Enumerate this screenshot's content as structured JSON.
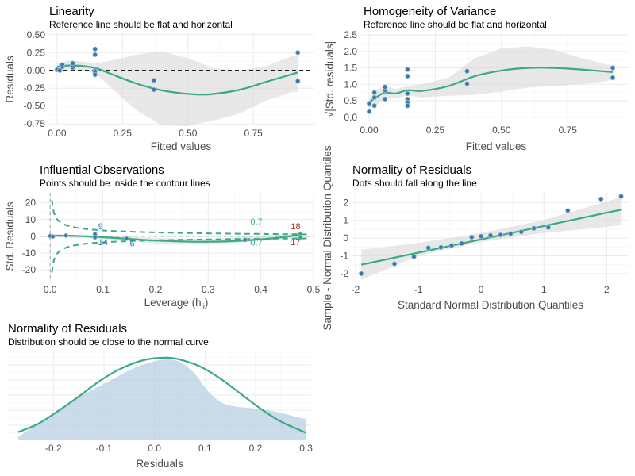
{
  "colors": {
    "smooth": "#3aaa85",
    "points": "#3a78a6",
    "band": "#d9d9d9",
    "outlier": "#b02a2a",
    "density": "#b8cfe3"
  },
  "chart_data": [
    {
      "id": "linearity",
      "type": "scatter",
      "title": "Linearity",
      "subtitle": "Reference line should be flat and horizontal",
      "xlabel": "Fitted values",
      "ylabel": "Residuals",
      "xlim": [
        -0.03,
        0.98
      ],
      "ylim": [
        -0.77,
        0.52
      ],
      "xticks": [
        0,
        0.25,
        0.5,
        0.75
      ],
      "xtick_labels": [
        "0.00",
        "0.25",
        "0.50",
        "0.75"
      ],
      "yticks": [
        0.5,
        0.25,
        0,
        -0.25,
        -0.5,
        -0.75
      ],
      "ytick_labels": [
        "0.50",
        "0.25",
        "0.00",
        "-0.25",
        "-0.50",
        "-0.75"
      ],
      "reference_y": 0,
      "points": [
        [
          0.0,
          0.01
        ],
        [
          0.01,
          0.0
        ],
        [
          0.02,
          0.05
        ],
        [
          0.02,
          0.08
        ],
        [
          0.06,
          0.04
        ],
        [
          0.06,
          0.07
        ],
        [
          0.06,
          0.1
        ],
        [
          0.145,
          0.3
        ],
        [
          0.145,
          0.22
        ],
        [
          0.145,
          0.0
        ],
        [
          0.145,
          -0.02
        ],
        [
          0.145,
          -0.06
        ],
        [
          0.37,
          -0.14
        ],
        [
          0.37,
          -0.27
        ],
        [
          0.92,
          0.25
        ],
        [
          0.92,
          -0.15
        ]
      ],
      "smooth": [
        [
          0.0,
          0.05
        ],
        [
          0.05,
          0.07
        ],
        [
          0.1,
          0.06
        ],
        [
          0.15,
          0.03
        ],
        [
          0.2,
          -0.04
        ],
        [
          0.3,
          -0.18
        ],
        [
          0.4,
          -0.28
        ],
        [
          0.5,
          -0.33
        ],
        [
          0.55,
          -0.34
        ],
        [
          0.6,
          -0.33
        ],
        [
          0.7,
          -0.27
        ],
        [
          0.8,
          -0.16
        ],
        [
          0.9,
          -0.05
        ],
        [
          0.92,
          -0.03
        ]
      ],
      "band_upper": [
        [
          0.0,
          0.1
        ],
        [
          0.05,
          0.14
        ],
        [
          0.1,
          0.12
        ],
        [
          0.15,
          0.1
        ],
        [
          0.2,
          0.13
        ],
        [
          0.3,
          0.22
        ],
        [
          0.4,
          0.27
        ],
        [
          0.5,
          0.17
        ],
        [
          0.6,
          0.03
        ],
        [
          0.7,
          0.0
        ],
        [
          0.8,
          0.06
        ],
        [
          0.9,
          0.2
        ],
        [
          0.92,
          0.22
        ]
      ],
      "band_lower": [
        [
          0.92,
          -0.3
        ],
        [
          0.9,
          -0.3
        ],
        [
          0.8,
          -0.42
        ],
        [
          0.7,
          -0.6
        ],
        [
          0.6,
          -0.7
        ],
        [
          0.5,
          -0.78
        ],
        [
          0.4,
          -0.77
        ],
        [
          0.3,
          -0.55
        ],
        [
          0.2,
          -0.22
        ],
        [
          0.15,
          -0.05
        ],
        [
          0.1,
          0.0
        ],
        [
          0.05,
          0.01
        ],
        [
          0.0,
          0.0
        ]
      ]
    },
    {
      "id": "homogeneity",
      "type": "scatter",
      "title": "Homogeneity of Variance",
      "subtitle": "Reference line should be flat and horizontal",
      "xlabel": "Fitted values",
      "ylabel": "√|Std. residuals|",
      "xlim": [
        -0.03,
        0.98
      ],
      "ylim": [
        -0.15,
        2.55
      ],
      "xticks": [
        0,
        0.25,
        0.5,
        0.75
      ],
      "xtick_labels": [
        "0.00",
        "0.25",
        "0.50",
        "0.75"
      ],
      "yticks": [
        2.5,
        2.0,
        1.5,
        1.0,
        0.5,
        0.0
      ],
      "ytick_labels": [
        "2.5",
        "2.0",
        "1.5",
        "1.0",
        "0.5",
        "0.0"
      ],
      "points": [
        [
          0.0,
          0.17
        ],
        [
          0.0,
          0.42
        ],
        [
          0.02,
          0.35
        ],
        [
          0.02,
          0.6
        ],
        [
          0.02,
          0.75
        ],
        [
          0.06,
          0.55
        ],
        [
          0.06,
          0.82
        ],
        [
          0.06,
          0.92
        ],
        [
          0.145,
          1.45
        ],
        [
          0.145,
          1.25
        ],
        [
          0.145,
          0.72
        ],
        [
          0.145,
          0.55
        ],
        [
          0.145,
          0.45
        ],
        [
          0.145,
          0.35
        ],
        [
          0.37,
          1.4
        ],
        [
          0.37,
          1.02
        ],
        [
          0.92,
          1.5
        ],
        [
          0.92,
          1.2
        ]
      ],
      "smooth": [
        [
          0.0,
          0.45
        ],
        [
          0.03,
          0.62
        ],
        [
          0.06,
          0.75
        ],
        [
          0.1,
          0.72
        ],
        [
          0.145,
          0.82
        ],
        [
          0.2,
          0.8
        ],
        [
          0.3,
          0.95
        ],
        [
          0.4,
          1.25
        ],
        [
          0.5,
          1.42
        ],
        [
          0.6,
          1.5
        ],
        [
          0.7,
          1.5
        ],
        [
          0.8,
          1.45
        ],
        [
          0.92,
          1.37
        ]
      ],
      "band_upper": [
        [
          0.0,
          0.6
        ],
        [
          0.03,
          0.85
        ],
        [
          0.06,
          0.95
        ],
        [
          0.1,
          0.85
        ],
        [
          0.145,
          0.95
        ],
        [
          0.2,
          1.0
        ],
        [
          0.3,
          1.2
        ],
        [
          0.4,
          1.8
        ],
        [
          0.5,
          2.1
        ],
        [
          0.6,
          2.15
        ],
        [
          0.7,
          2.05
        ],
        [
          0.8,
          1.8
        ],
        [
          0.9,
          1.6
        ],
        [
          0.92,
          1.58
        ]
      ],
      "band_lower": [
        [
          0.92,
          1.15
        ],
        [
          0.9,
          1.1
        ],
        [
          0.8,
          1.0
        ],
        [
          0.7,
          0.95
        ],
        [
          0.6,
          0.9
        ],
        [
          0.5,
          0.78
        ],
        [
          0.4,
          0.68
        ],
        [
          0.3,
          0.65
        ],
        [
          0.2,
          0.6
        ],
        [
          0.145,
          0.66
        ],
        [
          0.1,
          0.58
        ],
        [
          0.06,
          0.55
        ],
        [
          0.03,
          0.38
        ],
        [
          0.0,
          0.3
        ]
      ]
    },
    {
      "id": "influential",
      "type": "scatter",
      "title": "Influential Observations",
      "subtitle": "Points should be inside the contour lines",
      "xlabel": "Leverage (h",
      "xlabel_sub": "ii",
      "xlabel_end": ")",
      "ylabel": "Std. Residuals",
      "xlim": [
        -0.02,
        0.5
      ],
      "ylim": [
        -27,
        26
      ],
      "xticks": [
        0,
        0.1,
        0.2,
        0.3,
        0.4,
        0.5
      ],
      "xtick_labels": [
        "0.0",
        "0.1",
        "0.2",
        "0.3",
        "0.4",
        "0.5"
      ],
      "yticks": [
        20,
        10,
        0,
        -10,
        -20
      ],
      "ytick_labels": [
        "20",
        "10",
        "0",
        "-10",
        "-20"
      ],
      "points": [
        [
          0.0,
          0.2
        ],
        [
          0.005,
          -0.1
        ],
        [
          0.03,
          0.5
        ],
        [
          0.085,
          1.3
        ],
        [
          0.085,
          -0.6
        ],
        [
          0.145,
          -1.3
        ],
        [
          0.37,
          -2.1
        ],
        [
          0.475,
          1.3
        ],
        [
          0.475,
          -0.6
        ]
      ],
      "point_labels": [
        {
          "x": 0.085,
          "y": 1.3,
          "text": "9",
          "kind": "in"
        },
        {
          "x": 0.085,
          "y": -0.6,
          "text": "14",
          "kind": "in"
        },
        {
          "x": 0.145,
          "y": -1.3,
          "text": "6",
          "kind": "in"
        },
        {
          "x": 0.475,
          "y": 1.3,
          "text": "18",
          "kind": "out"
        },
        {
          "x": 0.475,
          "y": -0.6,
          "text": "17",
          "kind": "out"
        }
      ],
      "contour_labels": [
        {
          "x": 0.38,
          "y": 7,
          "text": "0.7"
        },
        {
          "x": 0.38,
          "y": -5.5,
          "text": "0.7"
        }
      ],
      "smooth": [
        [
          0.0,
          0.5
        ],
        [
          0.05,
          0.3
        ],
        [
          0.1,
          -0.5
        ],
        [
          0.15,
          -1.5
        ],
        [
          0.2,
          -2.5
        ],
        [
          0.28,
          -3.2
        ],
        [
          0.35,
          -2.8
        ],
        [
          0.42,
          -1.2
        ],
        [
          0.47,
          0.8
        ]
      ],
      "band_upper": [
        [
          0.0,
          1.2
        ],
        [
          0.1,
          0.5
        ],
        [
          0.2,
          -1
        ],
        [
          0.3,
          -1.6
        ],
        [
          0.4,
          0.2
        ],
        [
          0.47,
          2.2
        ]
      ],
      "band_lower": [
        [
          0.47,
          -0.8
        ],
        [
          0.4,
          -2.8
        ],
        [
          0.3,
          -4.8
        ],
        [
          0.2,
          -4.2
        ],
        [
          0.1,
          -1.6
        ],
        [
          0.0,
          -0.3
        ]
      ]
    },
    {
      "id": "qq",
      "type": "scatter",
      "title": "Normality of Residuals",
      "subtitle": "Dots should fall along the line",
      "xlabel": "Standard Normal Distribution Quantiles",
      "ylabel": "Sample - Normal Distribution Quantiles",
      "xlim": [
        -2.05,
        2.35
      ],
      "ylim": [
        -2.45,
        2.55
      ],
      "xticks": [
        -2,
        -1,
        0,
        1,
        2
      ],
      "xtick_labels": [
        "-2",
        "-1",
        "0",
        "1",
        "2"
      ],
      "yticks": [
        2,
        1,
        0,
        -1,
        -2
      ],
      "ytick_labels": [
        "2",
        "1",
        "0",
        "-1",
        "-2"
      ],
      "points": [
        [
          -1.91,
          -2.0
        ],
        [
          -1.38,
          -1.45
        ],
        [
          -1.07,
          -1.05
        ],
        [
          -0.84,
          -0.55
        ],
        [
          -0.64,
          -0.52
        ],
        [
          -0.47,
          -0.42
        ],
        [
          -0.31,
          -0.3
        ],
        [
          -0.15,
          0.05
        ],
        [
          0.0,
          0.1
        ],
        [
          0.15,
          0.15
        ],
        [
          0.31,
          0.18
        ],
        [
          0.47,
          0.25
        ],
        [
          0.64,
          0.35
        ],
        [
          0.84,
          0.55
        ],
        [
          1.07,
          0.6
        ],
        [
          1.38,
          1.55
        ],
        [
          1.91,
          2.2
        ],
        [
          2.23,
          2.35
        ]
      ],
      "line": [
        [
          -1.91,
          -1.5
        ],
        [
          2.23,
          1.6
        ]
      ],
      "band_upper": [
        [
          -1.91,
          -0.65
        ],
        [
          -1.0,
          -0.28
        ],
        [
          0.0,
          0.28
        ],
        [
          1.0,
          1.02
        ],
        [
          2.23,
          2.3
        ]
      ],
      "band_lower": [
        [
          2.23,
          0.72
        ],
        [
          1.0,
          0.28
        ],
        [
          0.0,
          -0.22
        ],
        [
          -1.0,
          -1.0
        ],
        [
          -1.91,
          -2.35
        ]
      ]
    },
    {
      "id": "density",
      "type": "area",
      "title": "Normality of Residuals",
      "subtitle": "Distribution should be close to the normal curve",
      "xlabel": "Residuals",
      "xlim": [
        -0.29,
        0.31
      ],
      "xticks": [
        -0.2,
        -0.1,
        0.0,
        0.1,
        0.2,
        0.3
      ],
      "xtick_labels": [
        "-0.2",
        "-0.1",
        "0.0",
        "0.1",
        "0.2",
        "0.3"
      ],
      "density": [
        [
          -0.27,
          0.1
        ],
        [
          -0.24,
          0.45
        ],
        [
          -0.2,
          0.9
        ],
        [
          -0.16,
          1.35
        ],
        [
          -0.12,
          1.7
        ],
        [
          -0.08,
          2.05
        ],
        [
          -0.04,
          2.4
        ],
        [
          0.0,
          2.62
        ],
        [
          0.02,
          2.68
        ],
        [
          0.04,
          2.66
        ],
        [
          0.06,
          2.5
        ],
        [
          0.08,
          2.2
        ],
        [
          0.1,
          1.75
        ],
        [
          0.12,
          1.4
        ],
        [
          0.14,
          1.2
        ],
        [
          0.16,
          1.12
        ],
        [
          0.2,
          1.05
        ],
        [
          0.24,
          0.95
        ],
        [
          0.28,
          0.78
        ],
        [
          0.3,
          0.7
        ]
      ],
      "normal_curve": [
        [
          -0.27,
          0.27
        ],
        [
          -0.23,
          0.55
        ],
        [
          -0.19,
          0.98
        ],
        [
          -0.15,
          1.45
        ],
        [
          -0.11,
          1.95
        ],
        [
          -0.07,
          2.35
        ],
        [
          -0.03,
          2.62
        ],
        [
          0.0,
          2.72
        ],
        [
          0.025,
          2.74
        ],
        [
          0.05,
          2.68
        ],
        [
          0.09,
          2.45
        ],
        [
          0.13,
          2.05
        ],
        [
          0.17,
          1.55
        ],
        [
          0.21,
          1.05
        ],
        [
          0.25,
          0.62
        ],
        [
          0.3,
          0.25
        ]
      ]
    }
  ]
}
